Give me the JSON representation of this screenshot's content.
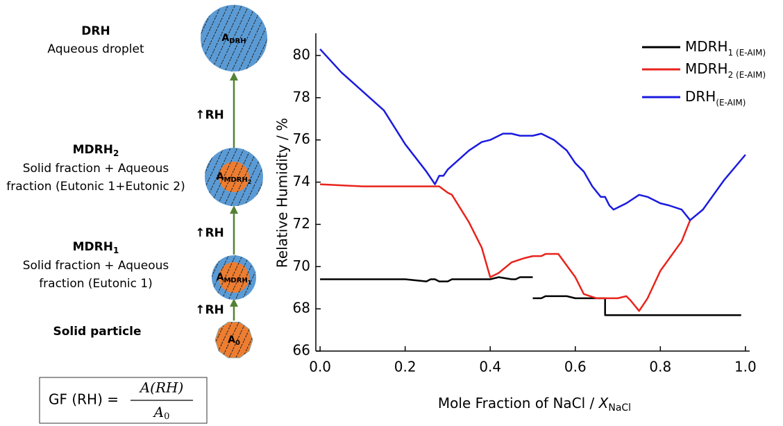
{
  "diagram": {
    "stages": [
      {
        "title": "DRH",
        "lines": [
          "Aqueous droplet"
        ],
        "area": "A",
        "area_sub": "DRH"
      },
      {
        "title": "MDRH",
        "title_sub": "2",
        "lines": [
          "Solid fraction + Aqueous",
          "fraction (Eutonic 1+Eutonic 2)"
        ],
        "area": "A",
        "area_sub": "MDRH",
        "area_subsub": "2"
      },
      {
        "title": "MDRH",
        "title_sub": "1",
        "lines": [
          "Solid fraction + Aqueous",
          "fraction (Eutonic 1)"
        ],
        "area": "A",
        "area_sub": "MDRH",
        "area_subsub": "1"
      },
      {
        "title": "Solid particle",
        "area": "A",
        "area_sub": "0"
      }
    ],
    "arrows": [
      "↑RH",
      "↑RH",
      "↑RH"
    ],
    "formula": {
      "lhs": "GF (RH) =",
      "numerator": "A(RH)",
      "denominator": "A",
      "denominator_sub": "0"
    }
  },
  "chart_data": {
    "type": "line",
    "xlabel": "Mole Fraction of NaCl / ",
    "xlabel_var": "X",
    "xlabel_sub": "NaCl",
    "ylabel": "Relative Humidity / %",
    "xlim": [
      -0.01,
      1.01
    ],
    "ylim": [
      66,
      81.05
    ],
    "xticks": [
      {
        "value": 0,
        "label": "0.0"
      },
      0.2,
      0.4,
      0.6,
      0.8,
      {
        "value": 1,
        "label": "1.0"
      }
    ],
    "yticks": [
      66,
      68,
      70,
      72,
      74,
      76,
      78,
      80
    ],
    "legend": "upper right",
    "series": [
      {
        "name": "MDRH",
        "subscript": "1 (E-AIM)",
        "color": "#000000",
        "x": [
          0,
          0.2,
          0.25,
          0.26,
          0.27,
          0.28,
          0.3,
          0.31,
          0.4,
          0.42,
          0.45,
          0.46,
          0.47,
          0.5,
          0.5,
          0.5,
          0.52,
          0.53,
          0.58,
          0.6,
          0.67,
          0.67,
          0.99
        ],
        "values": [
          69.4,
          69.4,
          69.3,
          69.4,
          69.4,
          69.3,
          69.3,
          69.4,
          69.4,
          69.5,
          69.4,
          69.4,
          69.5,
          69.5,
          null,
          68.5,
          68.5,
          68.6,
          68.6,
          68.5,
          68.5,
          67.7,
          67.7
        ]
      },
      {
        "name": "MDRH",
        "subscript": "2 (E-AIM)",
        "color": "#e8231c",
        "x": [
          0,
          0.1,
          0.26,
          0.28,
          0.3,
          0.31,
          0.35,
          0.38,
          0.4,
          0.42,
          0.45,
          0.48,
          0.5,
          0.52,
          0.53,
          0.56,
          0.6,
          0.62,
          0.65,
          0.7,
          0.72,
          0.73,
          0.75,
          0.77,
          0.8,
          0.85,
          0.87
        ],
        "values": [
          73.9,
          73.8,
          73.8,
          73.8,
          73.5,
          73.4,
          72.1,
          70.9,
          69.5,
          69.7,
          70.2,
          70.4,
          70.5,
          70.5,
          70.6,
          70.6,
          69.5,
          68.7,
          68.5,
          68.5,
          68.6,
          68.4,
          67.9,
          68.5,
          69.8,
          71.2,
          72.2
        ]
      },
      {
        "name": "DRH",
        "subscript": "(E-AIM)",
        "color": "#1a1adf",
        "x": [
          0,
          0.05,
          0.1,
          0.15,
          0.2,
          0.25,
          0.27,
          0.28,
          0.29,
          0.3,
          0.35,
          0.38,
          0.4,
          0.42,
          0.43,
          0.45,
          0.47,
          0.5,
          0.52,
          0.55,
          0.58,
          0.6,
          0.62,
          0.64,
          0.66,
          0.67,
          0.68,
          0.69,
          0.72,
          0.75,
          0.77,
          0.8,
          0.82,
          0.85,
          0.87,
          0.9,
          0.95,
          1.0
        ],
        "values": [
          80.3,
          79.2,
          78.3,
          77.4,
          75.8,
          74.5,
          73.9,
          74.3,
          74.3,
          74.6,
          75.5,
          75.9,
          76.0,
          76.2,
          76.3,
          76.3,
          76.2,
          76.2,
          76.3,
          76.0,
          75.5,
          74.9,
          74.5,
          73.8,
          73.3,
          73.3,
          72.9,
          72.7,
          73.0,
          73.4,
          73.3,
          73.0,
          72.9,
          72.7,
          72.2,
          72.7,
          74.1,
          75.3
        ]
      }
    ]
  }
}
